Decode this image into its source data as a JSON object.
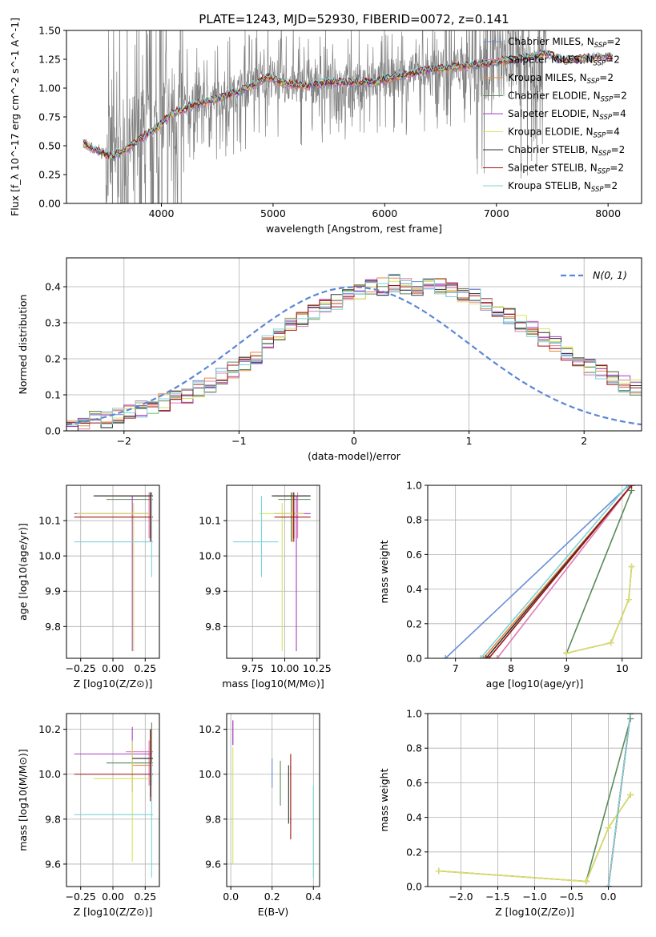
{
  "series_styles": [
    {
      "name": "Chabrier MILES",
      "nssp": "2",
      "color": "#6a8fd6"
    },
    {
      "name": "Salpeter MILES",
      "nssp": "2",
      "color": "#e07ab3"
    },
    {
      "name": "Kroupa MILES",
      "nssp": "2",
      "color": "#e8883a"
    },
    {
      "name": "Chabrier ELODIE",
      "nssp": "2",
      "color": "#5a8a5a"
    },
    {
      "name": "Salpeter ELODIE",
      "nssp": "4",
      "color": "#a33fc4"
    },
    {
      "name": "Kroupa ELODIE",
      "nssp": "4",
      "color": "#d7e35a"
    },
    {
      "name": "Chabrier STELIB",
      "nssp": "2",
      "color": "#333333"
    },
    {
      "name": "Salpeter STELIB",
      "nssp": "2",
      "color": "#a01515"
    },
    {
      "name": "Kroupa STELIB",
      "nssp": "2",
      "color": "#7fd3d9"
    }
  ],
  "chart_data": [
    {
      "id": "spectrum",
      "type": "line",
      "title": "PLATE=1243, MJD=52930, FIBERID=0072, z=0.141",
      "xlabel": "wavelength [Angstrom, rest frame]",
      "ylabel": "Flux [f_λ 10^-17 erg cm^-2 s^-1 A^-1]",
      "xlim": [
        3150,
        8300
      ],
      "ylim": [
        0,
        1.5
      ],
      "xticks": [
        4000,
        5000,
        6000,
        7000,
        8000
      ],
      "yticks": [
        0.0,
        0.25,
        0.5,
        0.75,
        1.0,
        1.25,
        1.5
      ],
      "data_color": "#808080",
      "model_x": [
        3300,
        3450,
        3550,
        3700,
        3800,
        3950,
        4100,
        4300,
        4500,
        4700,
        4850,
        4950,
        5100,
        5300,
        5500,
        5700,
        5900,
        6100,
        6300,
        6500,
        6700,
        6900,
        7100,
        7300,
        7450,
        7600,
        7800,
        8050
      ],
      "model_y": [
        0.52,
        0.45,
        0.4,
        0.48,
        0.55,
        0.65,
        0.78,
        0.86,
        0.91,
        0.97,
        1.04,
        1.1,
        1.04,
        1.02,
        1.05,
        1.05,
        1.05,
        1.1,
        1.14,
        1.17,
        1.19,
        1.21,
        1.24,
        1.27,
        1.3,
        1.24,
        1.26,
        1.27
      ],
      "legend_position": "upper right"
    },
    {
      "id": "residuals",
      "type": "histogram",
      "xlabel": "(data-model)/error",
      "ylabel": "Normed distribution",
      "xlim": [
        -2.5,
        2.5
      ],
      "ylim": [
        0,
        0.48
      ],
      "xticks": [
        -2,
        -1,
        0,
        1,
        2
      ],
      "yticks": [
        0.0,
        0.1,
        0.2,
        0.3,
        0.4
      ],
      "grid": true,
      "bin_edges_start": -2.5,
      "bin_width": 0.1,
      "bin_values": [
        0.02,
        0.02,
        0.03,
        0.03,
        0.04,
        0.05,
        0.06,
        0.07,
        0.08,
        0.09,
        0.1,
        0.12,
        0.13,
        0.15,
        0.17,
        0.19,
        0.21,
        0.24,
        0.26,
        0.29,
        0.31,
        0.33,
        0.35,
        0.36,
        0.38,
        0.39,
        0.4,
        0.4,
        0.41,
        0.4,
        0.39,
        0.41,
        0.4,
        0.39,
        0.38,
        0.37,
        0.35,
        0.33,
        0.32,
        0.3,
        0.28,
        0.26,
        0.24,
        0.22,
        0.2,
        0.18,
        0.16,
        0.15,
        0.13,
        0.12,
        0.1
      ],
      "gaussian_label": "N(0, 1)",
      "gaussian_color": "#5b86d6",
      "legend_position": "upper right"
    },
    {
      "id": "age-vs-Z",
      "type": "errorbar",
      "xlabel": "Z [log10(Z/Z⊙)]",
      "ylabel": "age [log10(age/yr)]",
      "xlim": [
        -0.36,
        0.36
      ],
      "ylim": [
        9.71,
        10.2
      ],
      "xticks": [
        -0.25,
        0.0,
        0.25
      ],
      "yticks": [
        9.8,
        9.9,
        10.0,
        10.1
      ],
      "grid": true,
      "points": [
        {
          "x": 0.29,
          "y": 10.17,
          "xlo": -0.15,
          "xhi": 0.31,
          "ylo": 10.04,
          "yhi": 10.18,
          "series": 0
        },
        {
          "x": 0.28,
          "y": 10.17,
          "xlo": 0.0,
          "xhi": 0.31,
          "ylo": 10.05,
          "yhi": 10.18,
          "series": 1
        },
        {
          "x": 0.29,
          "y": 10.17,
          "xlo": -0.1,
          "xhi": 0.31,
          "ylo": 10.04,
          "yhi": 10.18,
          "series": 2
        },
        {
          "x": 0.3,
          "y": 10.16,
          "xlo": -0.05,
          "xhi": 0.31,
          "ylo": 10.04,
          "yhi": 10.18,
          "series": 3
        },
        {
          "x": 0.15,
          "y": 10.12,
          "xlo": -0.3,
          "xhi": 0.3,
          "ylo": 9.73,
          "yhi": 10.17,
          "series": 4
        },
        {
          "x": 0.16,
          "y": 10.12,
          "xlo": -0.28,
          "xhi": 0.3,
          "ylo": 9.73,
          "yhi": 10.15,
          "series": 5
        },
        {
          "x": 0.29,
          "y": 10.17,
          "xlo": -0.15,
          "xhi": 0.31,
          "ylo": 10.05,
          "yhi": 10.18,
          "series": 6
        },
        {
          "x": 0.29,
          "y": 10.11,
          "xlo": -0.3,
          "xhi": 0.31,
          "ylo": 10.04,
          "yhi": 10.17,
          "series": 7
        },
        {
          "x": 0.3,
          "y": 10.04,
          "xlo": -0.3,
          "xhi": 0.31,
          "ylo": 9.94,
          "yhi": 10.17,
          "series": 8
        }
      ]
    },
    {
      "id": "age-vs-mass",
      "type": "errorbar",
      "xlabel": "mass [log10(M/M⊙)]",
      "ylabel": "",
      "xlim": [
        9.55,
        10.27
      ],
      "ylim": [
        9.71,
        10.2
      ],
      "xticks": [
        9.75,
        10.0,
        10.25
      ],
      "yticks": [
        9.8,
        9.9,
        10.0,
        10.1
      ],
      "grid": true,
      "points": [
        {
          "x": 10.07,
          "y": 10.17,
          "xlo": 9.9,
          "xhi": 10.2,
          "ylo": 10.05,
          "yhi": 10.18,
          "series": 0
        },
        {
          "x": 10.1,
          "y": 10.17,
          "xlo": 9.95,
          "xhi": 10.15,
          "ylo": 10.05,
          "yhi": 10.18,
          "series": 1
        },
        {
          "x": 10.06,
          "y": 10.17,
          "xlo": 9.92,
          "xhi": 10.18,
          "ylo": 10.04,
          "yhi": 10.18,
          "series": 2
        },
        {
          "x": 10.05,
          "y": 10.16,
          "xlo": 9.95,
          "xhi": 10.2,
          "ylo": 10.04,
          "yhi": 10.18,
          "series": 3
        },
        {
          "x": 10.09,
          "y": 10.12,
          "xlo": 9.92,
          "xhi": 10.2,
          "ylo": 9.73,
          "yhi": 10.17,
          "series": 4
        },
        {
          "x": 9.98,
          "y": 10.12,
          "xlo": 9.8,
          "xhi": 10.15,
          "ylo": 9.73,
          "yhi": 10.15,
          "series": 5
        },
        {
          "x": 10.07,
          "y": 10.17,
          "xlo": 9.9,
          "xhi": 10.2,
          "ylo": 10.05,
          "yhi": 10.18,
          "series": 6
        },
        {
          "x": 10.07,
          "y": 10.11,
          "xlo": 9.92,
          "xhi": 10.2,
          "ylo": 10.04,
          "yhi": 10.17,
          "series": 7
        },
        {
          "x": 9.82,
          "y": 10.04,
          "xlo": 9.6,
          "xhi": 9.95,
          "ylo": 9.94,
          "yhi": 10.17,
          "series": 8
        }
      ]
    },
    {
      "id": "mass-weight-vs-age",
      "type": "line",
      "xlabel": "age [log10(age/yr)]",
      "ylabel": "mass weight",
      "xlim": [
        6.5,
        10.35
      ],
      "ylim": [
        0,
        1.0
      ],
      "xticks": [
        7,
        8,
        9,
        10
      ],
      "yticks": [
        0.0,
        0.2,
        0.4,
        0.6,
        0.8,
        1.0
      ],
      "grid": true,
      "lines": [
        {
          "series": 0,
          "x": [
            6.82,
            10.12
          ],
          "y": [
            0.0,
            1.0
          ]
        },
        {
          "series": 1,
          "x": [
            7.75,
            10.17
          ],
          "y": [
            0.0,
            1.0
          ]
        },
        {
          "series": 2,
          "x": [
            7.5,
            10.17
          ],
          "y": [
            0.0,
            1.0
          ]
        },
        {
          "series": 3,
          "x": [
            9.0,
            10.17
          ],
          "y": [
            0.03,
            0.97
          ]
        },
        {
          "series": 4,
          "x": [
            9.0,
            9.8,
            10.12,
            10.17
          ],
          "y": [
            0.03,
            0.09,
            0.34,
            0.53
          ]
        },
        {
          "series": 5,
          "x": [
            9.0,
            9.8,
            10.12,
            10.17
          ],
          "y": [
            0.03,
            0.09,
            0.34,
            0.53
          ]
        },
        {
          "series": 6,
          "x": [
            7.55,
            10.17
          ],
          "y": [
            0.0,
            1.0
          ]
        },
        {
          "series": 7,
          "x": [
            7.6,
            10.17
          ],
          "y": [
            0.0,
            1.0
          ]
        },
        {
          "series": 8,
          "x": [
            7.45,
            10.1
          ],
          "y": [
            0.0,
            1.0
          ]
        }
      ]
    },
    {
      "id": "mass-vs-Z",
      "type": "errorbar",
      "xlabel": "Z [log10(Z/Z⊙)]",
      "ylabel": "mass [log10(M/M⊙)]",
      "xlim": [
        -0.36,
        0.36
      ],
      "ylim": [
        9.5,
        10.27
      ],
      "xticks": [
        -0.25,
        0.0,
        0.25
      ],
      "yticks": [
        9.6,
        9.8,
        10.0,
        10.2
      ],
      "grid": true,
      "points": [
        {
          "x": 0.29,
          "y": 10.07,
          "xlo": 0.16,
          "xhi": 0.31,
          "ylo": 9.9,
          "yhi": 10.2,
          "series": 0
        },
        {
          "x": 0.28,
          "y": 10.1,
          "xlo": 0.1,
          "xhi": 0.31,
          "ylo": 9.95,
          "yhi": 10.15,
          "series": 1
        },
        {
          "x": 0.29,
          "y": 10.04,
          "xlo": 0.15,
          "xhi": 0.31,
          "ylo": 9.92,
          "yhi": 10.18,
          "series": 2
        },
        {
          "x": 0.3,
          "y": 10.05,
          "xlo": -0.05,
          "xhi": 0.31,
          "ylo": 9.95,
          "yhi": 10.23,
          "series": 3
        },
        {
          "x": 0.15,
          "y": 10.09,
          "xlo": -0.3,
          "xhi": 0.3,
          "ylo": 9.92,
          "yhi": 10.21,
          "series": 4
        },
        {
          "x": 0.15,
          "y": 9.98,
          "xlo": -0.15,
          "xhi": 0.3,
          "ylo": 9.61,
          "yhi": 10.15,
          "series": 5
        },
        {
          "x": 0.29,
          "y": 10.07,
          "xlo": 0.15,
          "xhi": 0.31,
          "ylo": 9.9,
          "yhi": 10.2,
          "series": 6
        },
        {
          "x": 0.29,
          "y": 10.0,
          "xlo": -0.3,
          "xhi": 0.31,
          "ylo": 9.88,
          "yhi": 10.2,
          "series": 7
        },
        {
          "x": 0.3,
          "y": 9.82,
          "xlo": -0.3,
          "xhi": 0.31,
          "ylo": 9.54,
          "yhi": 10.05,
          "series": 8
        }
      ]
    },
    {
      "id": "mass-vs-ebv",
      "type": "errorbar",
      "xlabel": "E(B-V)",
      "ylabel": "",
      "xlim": [
        -0.02,
        0.43
      ],
      "ylim": [
        9.5,
        10.27
      ],
      "xticks": [
        0.0,
        0.2,
        0.4
      ],
      "yticks": [
        9.6,
        9.8,
        10.0,
        10.2
      ],
      "grid": true,
      "points": [
        {
          "x": 0.2,
          "y": 10.0,
          "ylo": 9.94,
          "yhi": 10.07,
          "series": 0
        },
        {
          "x": 0.01,
          "y": 10.2,
          "ylo": 10.13,
          "yhi": 10.24,
          "series": 1
        },
        {
          "x": 0.29,
          "y": 9.95,
          "ylo": 9.78,
          "yhi": 10.04,
          "series": 2
        },
        {
          "x": 0.24,
          "y": 10.0,
          "ylo": 9.86,
          "yhi": 10.06,
          "series": 3
        },
        {
          "x": 0.01,
          "y": 10.2,
          "ylo": 10.13,
          "yhi": 10.24,
          "series": 4
        },
        {
          "x": 0.01,
          "y": 9.85,
          "ylo": 9.6,
          "yhi": 10.12,
          "series": 5
        },
        {
          "x": 0.28,
          "y": 9.95,
          "ylo": 9.78,
          "yhi": 10.04,
          "series": 6
        },
        {
          "x": 0.29,
          "y": 9.92,
          "ylo": 9.71,
          "yhi": 10.09,
          "series": 7
        },
        {
          "x": 0.4,
          "y": 9.75,
          "ylo": 9.54,
          "yhi": 9.95,
          "series": 8
        }
      ]
    },
    {
      "id": "mass-weight-vs-Z",
      "type": "line",
      "xlabel": "Z [log10(Z/Z⊙)]",
      "ylabel": "mass weight",
      "xlim": [
        -2.45,
        0.45
      ],
      "ylim": [
        0,
        1.0
      ],
      "xticks": [
        -2.0,
        -1.5,
        -1.0,
        -0.5,
        0.0
      ],
      "yticks": [
        0.0,
        0.2,
        0.4,
        0.6,
        0.8,
        1.0
      ],
      "grid": true,
      "lines": [
        {
          "series": 0,
          "x": [
            0.0,
            0.3
          ],
          "y": [
            0.0,
            1.0
          ]
        },
        {
          "series": 1,
          "x": [
            0.0,
            0.3
          ],
          "y": [
            0.0,
            1.0
          ]
        },
        {
          "series": 2,
          "x": [
            0.0,
            0.3
          ],
          "y": [
            0.0,
            1.0
          ]
        },
        {
          "series": 3,
          "x": [
            -0.3,
            0.3
          ],
          "y": [
            0.03,
            0.97
          ]
        },
        {
          "series": 4,
          "x": [
            -2.3,
            -0.3,
            0.0,
            0.3
          ],
          "y": [
            0.09,
            0.03,
            0.34,
            0.53
          ]
        },
        {
          "series": 5,
          "x": [
            -2.3,
            -0.3,
            0.0,
            0.3
          ],
          "y": [
            0.09,
            0.03,
            0.34,
            0.53
          ]
        },
        {
          "series": 6,
          "x": [
            0.0,
            0.3
          ],
          "y": [
            0.0,
            1.0
          ]
        },
        {
          "series": 7,
          "x": [
            0.0,
            0.3
          ],
          "y": [
            0.0,
            1.0
          ]
        },
        {
          "series": 8,
          "x": [
            0.0,
            0.3
          ],
          "y": [
            0.0,
            1.0
          ]
        }
      ]
    }
  ]
}
